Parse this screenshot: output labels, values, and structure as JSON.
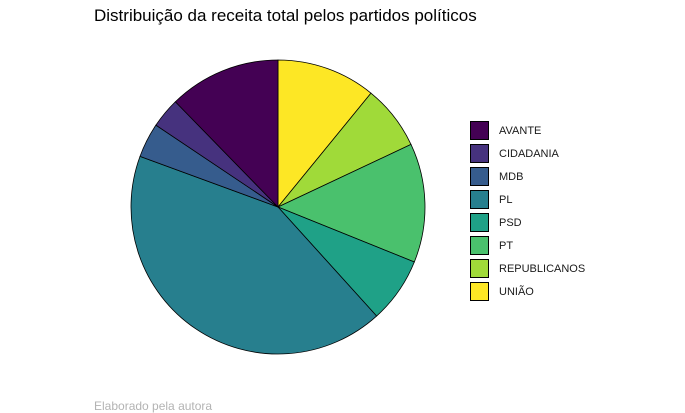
{
  "title": "Distribuição da receita total pelos partidos políticos",
  "caption": "Elaborado pela autora",
  "chart_data": {
    "type": "pie",
    "title": "Distribuição da receita total pelos partidos políticos",
    "legend_position": "right",
    "slices": [
      {
        "label": "UNIÃO",
        "value": 10.9,
        "color": "#FDE725"
      },
      {
        "label": "REPUBLICANOS",
        "value": 7.1,
        "color": "#A0DA39"
      },
      {
        "label": "PT",
        "value": 13.1,
        "color": "#4AC16D"
      },
      {
        "label": "PSD",
        "value": 7.2,
        "color": "#1FA187"
      },
      {
        "label": "PL",
        "value": 42.3,
        "color": "#277F8E"
      },
      {
        "label": "MDB",
        "value": 3.8,
        "color": "#365C8D"
      },
      {
        "label": "CIDADANIA",
        "value": 3.3,
        "color": "#46327E"
      },
      {
        "label": "AVANTE",
        "value": 12.3,
        "color": "#440154"
      }
    ],
    "legend": [
      {
        "label": "AVANTE",
        "color": "#440154"
      },
      {
        "label": "CIDADANIA",
        "color": "#46327E"
      },
      {
        "label": "MDB",
        "color": "#365C8D"
      },
      {
        "label": "PL",
        "color": "#277F8E"
      },
      {
        "label": "PSD",
        "color": "#1FA187"
      },
      {
        "label": "PT",
        "color": "#4AC16D"
      },
      {
        "label": "REPUBLICANOS",
        "color": "#A0DA39"
      },
      {
        "label": "UNIÃO",
        "color": "#FDE725"
      }
    ]
  }
}
